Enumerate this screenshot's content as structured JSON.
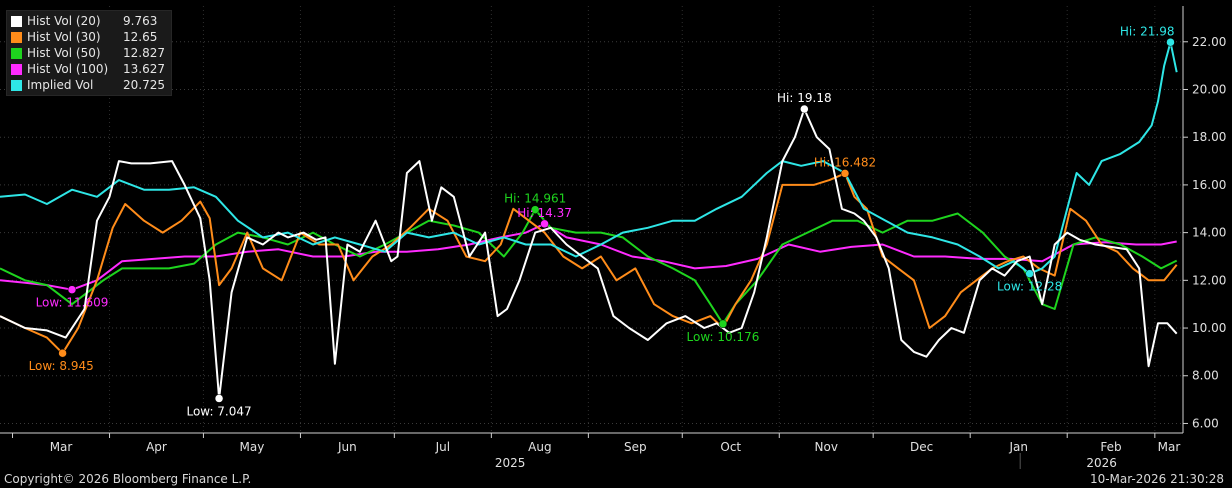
{
  "chart_data": {
    "type": "line",
    "x_months": [
      "Mar",
      "Apr",
      "May",
      "Jun",
      "Jul",
      "Aug",
      "Sep",
      "Oct",
      "Nov",
      "Dec",
      "Jan",
      "Feb",
      "Mar"
    ],
    "years": [
      "2025",
      "2026"
    ],
    "y_ticks": [
      "6.00",
      "8.00",
      "10.00",
      "12.00",
      "14.00",
      "16.00",
      "18.00",
      "20.00",
      "22.00"
    ],
    "ylim": [
      5.6,
      23.5
    ],
    "xlim": [
      "2025-02-25",
      "2026-03-10"
    ],
    "grid": true,
    "legend_position": "top-left",
    "series": [
      {
        "name": "Hist Vol (20)",
        "last": "9.763",
        "color": "#ffffff",
        "x": [
          "2025-02-25",
          "2025-03-05",
          "2025-03-12",
          "2025-03-18",
          "2025-03-24",
          "2025-03-28",
          "2025-04-01",
          "2025-04-04",
          "2025-04-08",
          "2025-04-14",
          "2025-04-21",
          "2025-04-25",
          "2025-04-30",
          "2025-05-03",
          "2025-05-06",
          "2025-05-10",
          "2025-05-15",
          "2025-05-20",
          "2025-05-25",
          "2025-05-28",
          "2025-06-02",
          "2025-06-06",
          "2025-06-09",
          "2025-06-12",
          "2025-06-16",
          "2025-06-20",
          "2025-06-25",
          "2025-06-30",
          "2025-07-02",
          "2025-07-05",
          "2025-07-09",
          "2025-07-13",
          "2025-07-16",
          "2025-07-20",
          "2025-07-25",
          "2025-07-30",
          "2025-08-03",
          "2025-08-06",
          "2025-08-10",
          "2025-08-15",
          "2025-08-20",
          "2025-08-25",
          "2025-08-30",
          "2025-09-04",
          "2025-09-09",
          "2025-09-14",
          "2025-09-20",
          "2025-09-26",
          "2025-10-02",
          "2025-10-08",
          "2025-10-12",
          "2025-10-16",
          "2025-10-20",
          "2025-10-24",
          "2025-10-28",
          "2025-11-02",
          "2025-11-06",
          "2025-11-09",
          "2025-11-13",
          "2025-11-17",
          "2025-11-21",
          "2025-11-25",
          "2025-11-28",
          "2025-12-02",
          "2025-12-06",
          "2025-12-10",
          "2025-12-14",
          "2025-12-18",
          "2025-12-22",
          "2025-12-26",
          "2025-12-30",
          "2026-01-04",
          "2026-01-08",
          "2026-01-12",
          "2026-01-16",
          "2026-01-20",
          "2026-01-24",
          "2026-01-28",
          "2026-02-01",
          "2026-02-05",
          "2026-02-10",
          "2026-02-15",
          "2026-02-20",
          "2026-02-24",
          "2026-02-27",
          "2026-03-02",
          "2026-03-05",
          "2026-03-08"
        ],
        "y": [
          10.5,
          10.0,
          9.9,
          9.6,
          10.8,
          14.5,
          15.5,
          17.0,
          16.9,
          16.9,
          17.0,
          16.0,
          14.6,
          12.0,
          7.047,
          11.5,
          13.8,
          13.5,
          14.0,
          13.8,
          14.0,
          13.7,
          13.8,
          8.5,
          13.5,
          13.2,
          14.5,
          12.8,
          13.0,
          16.5,
          17.0,
          14.5,
          15.9,
          15.5,
          13.0,
          14.0,
          10.5,
          10.8,
          12.0,
          14.0,
          14.2,
          13.5,
          13.0,
          12.5,
          10.5,
          10.0,
          9.5,
          10.2,
          10.5,
          10.0,
          10.2,
          9.8,
          10.0,
          11.5,
          13.8,
          17.0,
          18.0,
          19.18,
          18.0,
          17.5,
          15.0,
          14.8,
          14.5,
          13.8,
          12.5,
          9.5,
          9.0,
          8.8,
          9.5,
          10.0,
          9.8,
          12.0,
          12.5,
          12.2,
          12.8,
          13.0,
          11.0,
          13.5,
          14.0,
          13.7,
          13.5,
          13.4,
          13.3,
          12.5,
          8.4,
          10.2,
          10.2,
          9.763
        ]
      },
      {
        "name": "Hist Vol (30)",
        "last": "12.65",
        "color": "#ff8c1a",
        "x": [
          "2025-02-25",
          "2025-03-05",
          "2025-03-12",
          "2025-03-17",
          "2025-03-22",
          "2025-03-28",
          "2025-04-02",
          "2025-04-06",
          "2025-04-12",
          "2025-04-18",
          "2025-04-24",
          "2025-04-30",
          "2025-05-03",
          "2025-05-06",
          "2025-05-10",
          "2025-05-15",
          "2025-05-20",
          "2025-05-26",
          "2025-06-01",
          "2025-06-07",
          "2025-06-13",
          "2025-06-18",
          "2025-06-24",
          "2025-06-30",
          "2025-07-06",
          "2025-07-12",
          "2025-07-18",
          "2025-07-24",
          "2025-07-30",
          "2025-08-04",
          "2025-08-08",
          "2025-08-13",
          "2025-08-18",
          "2025-08-24",
          "2025-08-30",
          "2025-09-05",
          "2025-09-10",
          "2025-09-16",
          "2025-09-22",
          "2025-09-28",
          "2025-10-04",
          "2025-10-10",
          "2025-10-14",
          "2025-10-18",
          "2025-10-23",
          "2025-10-28",
          "2025-11-02",
          "2025-11-07",
          "2025-11-12",
          "2025-11-17",
          "2025-11-22",
          "2025-11-25",
          "2025-11-29",
          "2025-12-04",
          "2025-12-09",
          "2025-12-14",
          "2025-12-19",
          "2025-12-24",
          "2025-12-29",
          "2026-01-03",
          "2026-01-08",
          "2026-01-13",
          "2026-01-18",
          "2026-01-23",
          "2026-01-28",
          "2026-02-02",
          "2026-02-07",
          "2026-02-12",
          "2026-02-17",
          "2026-02-22",
          "2026-02-27",
          "2026-03-04",
          "2026-03-08"
        ],
        "y": [
          10.5,
          10.0,
          9.6,
          8.945,
          10.0,
          12.0,
          14.2,
          15.2,
          14.5,
          14.0,
          14.5,
          15.3,
          14.6,
          11.8,
          12.5,
          14.0,
          12.5,
          12.0,
          14.0,
          13.5,
          13.5,
          12.0,
          13.0,
          13.5,
          14.2,
          15.0,
          14.5,
          13.0,
          12.8,
          13.5,
          15.0,
          14.5,
          14.0,
          13.0,
          12.5,
          13.0,
          12.0,
          12.5,
          11.0,
          10.5,
          10.2,
          10.5,
          10.0,
          11.0,
          12.0,
          13.5,
          16.0,
          16.0,
          16.0,
          16.2,
          16.482,
          15.5,
          15.0,
          13.0,
          12.5,
          12.0,
          10.0,
          10.5,
          11.5,
          12.0,
          12.5,
          12.8,
          13.0,
          12.5,
          12.2,
          15.0,
          14.5,
          13.5,
          13.2,
          12.5,
          12.0,
          12.0,
          12.65
        ]
      },
      {
        "name": "Hist Vol (50)",
        "last": "12.827",
        "color": "#1ed41e",
        "x": [
          "2025-02-25",
          "2025-03-05",
          "2025-03-12",
          "2025-03-20",
          "2025-03-25",
          "2025-03-30",
          "2025-04-05",
          "2025-04-12",
          "2025-04-20",
          "2025-04-28",
          "2025-05-05",
          "2025-05-12",
          "2025-05-20",
          "2025-05-28",
          "2025-06-05",
          "2025-06-12",
          "2025-06-20",
          "2025-06-28",
          "2025-07-05",
          "2025-07-12",
          "2025-07-20",
          "2025-07-28",
          "2025-08-05",
          "2025-08-11",
          "2025-08-15",
          "2025-08-20",
          "2025-08-28",
          "2025-09-05",
          "2025-09-12",
          "2025-09-20",
          "2025-09-28",
          "2025-10-05",
          "2025-10-10",
          "2025-10-14",
          "2025-10-18",
          "2025-10-25",
          "2025-11-02",
          "2025-11-10",
          "2025-11-18",
          "2025-11-26",
          "2025-12-04",
          "2025-12-12",
          "2025-12-20",
          "2025-12-28",
          "2026-01-05",
          "2026-01-12",
          "2026-01-18",
          "2026-01-24",
          "2026-01-28",
          "2026-02-03",
          "2026-02-10",
          "2026-02-18",
          "2026-02-25",
          "2026-03-03",
          "2026-03-08"
        ],
        "y": [
          12.5,
          12.0,
          11.8,
          11.0,
          11.5,
          12.0,
          12.5,
          12.5,
          12.5,
          12.7,
          13.5,
          14.0,
          13.8,
          13.5,
          14.0,
          13.5,
          13.0,
          13.5,
          14.0,
          14.5,
          14.3,
          14.0,
          13.0,
          14.0,
          14.961,
          14.2,
          14.0,
          14.0,
          13.8,
          13.0,
          12.5,
          12.0,
          11.0,
          10.176,
          11.0,
          12.0,
          13.5,
          14.0,
          14.5,
          14.5,
          14.0,
          14.5,
          14.5,
          14.8,
          14.0,
          13.0,
          12.5,
          11.0,
          10.8,
          13.5,
          13.8,
          13.5,
          13.0,
          12.5,
          12.827
        ]
      },
      {
        "name": "Hist Vol (100)",
        "last": "13.627",
        "color": "#ff2bff",
        "x": [
          "2025-02-25",
          "2025-03-05",
          "2025-03-12",
          "2025-03-20",
          "2025-03-28",
          "2025-04-05",
          "2025-04-15",
          "2025-04-25",
          "2025-05-05",
          "2025-05-15",
          "2025-05-25",
          "2025-06-05",
          "2025-06-15",
          "2025-06-25",
          "2025-07-05",
          "2025-07-15",
          "2025-07-25",
          "2025-08-04",
          "2025-08-12",
          "2025-08-18",
          "2025-08-25",
          "2025-09-05",
          "2025-09-15",
          "2025-09-25",
          "2025-10-05",
          "2025-10-15",
          "2025-10-25",
          "2025-11-04",
          "2025-11-14",
          "2025-11-24",
          "2025-12-04",
          "2025-12-14",
          "2025-12-24",
          "2026-01-04",
          "2026-01-14",
          "2026-01-24",
          "2026-02-03",
          "2026-02-13",
          "2026-02-23",
          "2026-03-03",
          "2026-03-08"
        ],
        "y": [
          12.0,
          11.9,
          11.8,
          11.609,
          12.0,
          12.8,
          12.9,
          13.0,
          13.0,
          13.2,
          13.3,
          13.0,
          13.0,
          13.2,
          13.2,
          13.3,
          13.5,
          13.8,
          14.0,
          14.37,
          13.8,
          13.5,
          13.0,
          12.8,
          12.5,
          12.6,
          12.9,
          13.5,
          13.2,
          13.4,
          13.5,
          13.0,
          13.0,
          12.9,
          12.9,
          12.8,
          13.5,
          13.6,
          13.5,
          13.5,
          13.627
        ]
      },
      {
        "name": "Implied Vol",
        "last": "20.725",
        "color": "#2ee6e6",
        "x": [
          "2025-02-25",
          "2025-03-05",
          "2025-03-12",
          "2025-03-20",
          "2025-03-28",
          "2025-04-04",
          "2025-04-12",
          "2025-04-20",
          "2025-04-28",
          "2025-05-05",
          "2025-05-12",
          "2025-05-20",
          "2025-05-28",
          "2025-06-05",
          "2025-06-12",
          "2025-06-20",
          "2025-06-28",
          "2025-07-05",
          "2025-07-12",
          "2025-07-20",
          "2025-07-28",
          "2025-08-05",
          "2025-08-12",
          "2025-08-20",
          "2025-08-28",
          "2025-09-05",
          "2025-09-12",
          "2025-09-20",
          "2025-09-28",
          "2025-10-05",
          "2025-10-12",
          "2025-10-20",
          "2025-10-28",
          "2025-11-02",
          "2025-11-08",
          "2025-11-15",
          "2025-11-22",
          "2025-11-28",
          "2025-12-05",
          "2025-12-12",
          "2025-12-20",
          "2025-12-28",
          "2026-01-04",
          "2026-01-10",
          "2026-01-15",
          "2026-01-20",
          "2026-01-24",
          "2026-01-28",
          "2026-02-01",
          "2026-02-04",
          "2026-02-08",
          "2026-02-12",
          "2026-02-18",
          "2026-02-24",
          "2026-02-28",
          "2026-03-02",
          "2026-03-04",
          "2026-03-06",
          "2026-03-08"
        ],
        "y": [
          15.5,
          15.6,
          15.2,
          15.8,
          15.5,
          16.2,
          15.8,
          15.8,
          15.9,
          15.5,
          14.5,
          13.8,
          14.0,
          13.5,
          13.8,
          13.5,
          13.2,
          14.0,
          13.8,
          14.0,
          13.5,
          13.8,
          13.5,
          13.5,
          13.0,
          13.5,
          14.0,
          14.2,
          14.5,
          14.5,
          15.0,
          15.5,
          16.5,
          17.0,
          16.8,
          17.0,
          16.5,
          15.0,
          14.5,
          14.0,
          13.8,
          13.5,
          13.0,
          12.5,
          12.8,
          12.28,
          12.5,
          13.0,
          15.0,
          16.5,
          16.0,
          17.0,
          17.3,
          17.8,
          18.5,
          19.5,
          21.0,
          21.98,
          20.725
        ]
      }
    ],
    "annotations": [
      {
        "series": 0,
        "text": "Hi: 19.18",
        "x": "2025-11-09",
        "y": 19.18
      },
      {
        "series": 0,
        "text": "Low: 7.047",
        "x": "2025-05-06",
        "y": 7.047
      },
      {
        "series": 1,
        "text": "Hi: 16.482",
        "x": "2025-11-22",
        "y": 16.482
      },
      {
        "series": 1,
        "text": "Low: 8.945",
        "x": "2025-03-17",
        "y": 8.945
      },
      {
        "series": 2,
        "text": "Hi: 14.961",
        "x": "2025-08-15",
        "y": 14.961
      },
      {
        "series": 2,
        "text": "Low: 10.176",
        "x": "2025-10-14",
        "y": 10.176
      },
      {
        "series": 3,
        "text": "Hi: 14.37",
        "x": "2025-08-18",
        "y": 14.37
      },
      {
        "series": 3,
        "text": "Low: 11.609",
        "x": "2025-03-20",
        "y": 11.609
      },
      {
        "series": 4,
        "text": "Hi: 21.98",
        "x": "2026-03-06",
        "y": 21.98
      },
      {
        "series": 4,
        "text": "Low: 12.28",
        "x": "2026-01-20",
        "y": 12.28
      }
    ]
  },
  "footer": {
    "copyright": "Copyright© 2026 Bloomberg Finance L.P.",
    "timestamp": "10-Mar-2026 21:30:28"
  }
}
